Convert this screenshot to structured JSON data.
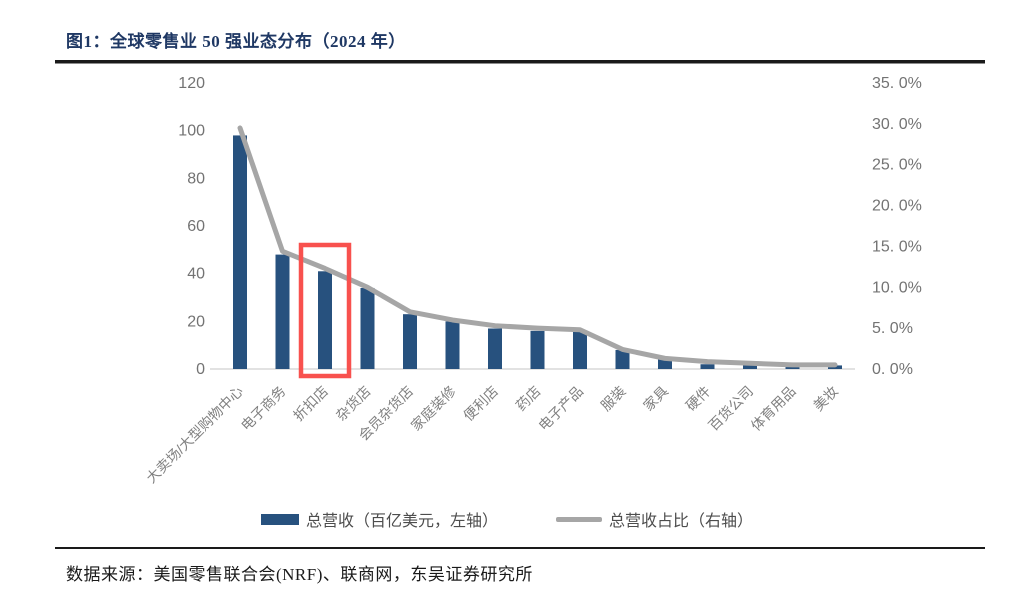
{
  "figure": {
    "title": "图1：全球零售业 50 强业态分布（2024 年）",
    "source": "数据来源：美国零售联合会(NRF)、联商网，东吴证券研究所"
  },
  "legend": [
    {
      "label": "总营收（百亿美元，左轴）",
      "swatch": "bar-swatch",
      "color": "#27517E"
    },
    {
      "label": "总营收占比（右轴）",
      "swatch": "line-swatch",
      "color": "#A6A6A6"
    }
  ],
  "colors": {
    "bar": "#27517E",
    "line": "#A6A6A6",
    "axis_text": "#737373",
    "category_text": "#808080",
    "baseline": "#D9D9D9",
    "highlight_box": "#F8514E",
    "title": "#1F3864"
  },
  "annotation": {
    "type": "red-highlight-box",
    "category": "折扣店",
    "category_index": 2
  },
  "chart_data": {
    "type": "bar",
    "subtype": "bar+line combo",
    "title": "全球零售业 50 强业态分布（2024 年）",
    "categories": [
      "大卖场/大型购物中心",
      "电子商务",
      "折扣店",
      "杂货店",
      "会员杂货店",
      "家庭装修",
      "便利店",
      "药店",
      "电子产品",
      "服装",
      "家具",
      "硬件",
      "百货公司",
      "体育用品",
      "美妆"
    ],
    "series": [
      {
        "name": "总营收（百亿美元，左轴）",
        "type": "bar",
        "axis": "left",
        "color": "#27517E",
        "values": [
          98,
          48,
          41,
          34,
          23,
          20,
          17,
          16,
          16,
          8,
          4,
          2,
          1.5,
          1,
          1.5
        ]
      },
      {
        "name": "总营收占比（右轴）",
        "type": "line",
        "axis": "right",
        "color": "#A6A6A6",
        "values": [
          29.5,
          14.4,
          12.3,
          10.0,
          7.0,
          6.0,
          5.3,
          5.0,
          4.8,
          2.4,
          1.3,
          0.9,
          0.7,
          0.5,
          0.5
        ]
      }
    ],
    "left_axis": {
      "min": 0,
      "max": 120,
      "step": 20,
      "ticks": [
        "0",
        "20",
        "40",
        "60",
        "80",
        "100",
        "120"
      ]
    },
    "right_axis": {
      "min": 0,
      "max": 35,
      "step": 5,
      "ticks": [
        "0. 0%",
        "5. 0%",
        "10. 0%",
        "15. 0%",
        "20. 0%",
        "25. 0%",
        "30. 0%",
        "35. 0%"
      ]
    },
    "grid": false,
    "legend_position": "bottom"
  }
}
